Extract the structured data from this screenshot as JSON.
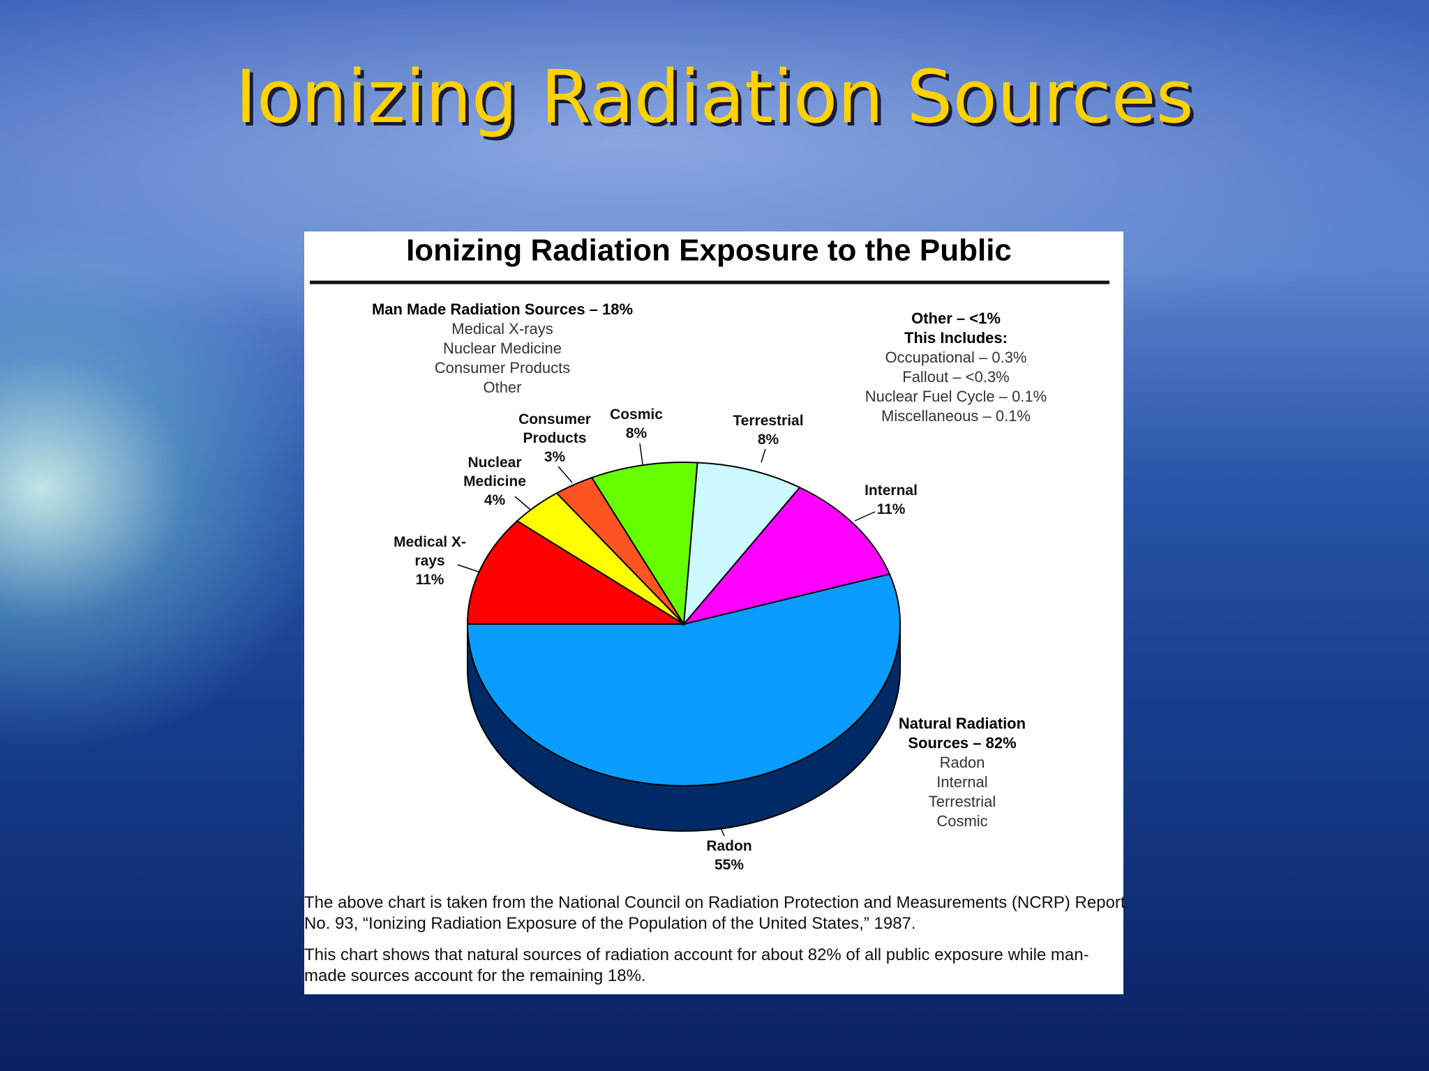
{
  "slide_title": "Ionizing Radiation Sources",
  "chart_data": {
    "type": "pie",
    "title": "Ionizing Radiation Exposure to the Public",
    "categories": [
      "Radon",
      "Internal",
      "Terrestrial",
      "Cosmic",
      "Consumer Products",
      "Nuclear Medicine",
      "Medical X-rays"
    ],
    "values": [
      55,
      11,
      8,
      8,
      3,
      4,
      11
    ],
    "value_labels": [
      "55%",
      "11%",
      "8%",
      "8%",
      "3%",
      "4%",
      "11%"
    ],
    "colors": [
      "#0a9cff",
      "#ff00ff",
      "#ccf8ff",
      "#66ff00",
      "#ff5522",
      "#ffff00",
      "#ff0000"
    ],
    "annotations": {
      "man_made": {
        "heading": "Man Made Radiation Sources – 18%",
        "items": [
          "Medical X-rays",
          "Nuclear Medicine",
          "Consumer Products",
          "Other"
        ]
      },
      "other": {
        "heading": "Other – <1%",
        "subheading": "This Includes:",
        "items": [
          "Occupational – 0.3%",
          "Fallout – <0.3%",
          "Nuclear Fuel Cycle – 0.1%",
          "Miscellaneous – 0.1%"
        ]
      },
      "natural": {
        "heading": "Natural Radiation Sources – 82%",
        "items": [
          "Radon",
          "Internal",
          "Terrestrial",
          "Cosmic"
        ]
      }
    }
  },
  "footnotes": [
    "The above chart is taken from the National Council on Radiation Protection and Measurements (NCRP) Report No. 93, “Ionizing Radiation Exposure of the Population of the United States,” 1987.",
    "This chart shows that natural sources of radiation account for about 82% of all public exposure while man-made sources account for the remaining 18%."
  ]
}
